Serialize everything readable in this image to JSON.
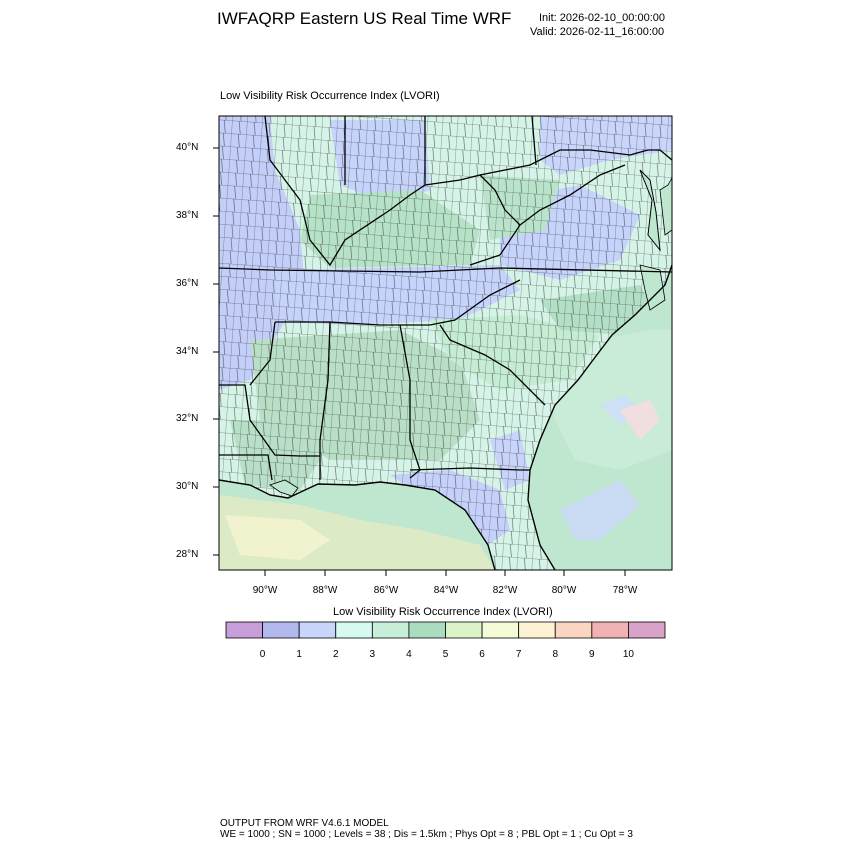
{
  "header": {
    "title": "IWFAQRP Eastern US Real Time WRF",
    "init": "Init: 2026-02-10_00:00:00",
    "valid": "Valid: 2026-02-11_16:00:00"
  },
  "map": {
    "title": "Low Visibility Risk Occurrence Index   (LVORI)",
    "lat_labels": [
      "40°N",
      "38°N",
      "36°N",
      "34°N",
      "32°N",
      "30°N",
      "28°N"
    ],
    "lon_labels": [
      "90°W",
      "88°W",
      "86°W",
      "84°W",
      "82°W",
      "80°W",
      "78°W"
    ]
  },
  "legend": {
    "title": "Low Visibility Risk Occurrence Index  (LVORI)",
    "labels": [
      "0",
      "1",
      "2",
      "3",
      "4",
      "5",
      "6",
      "7",
      "8",
      "9",
      "10"
    ],
    "colors": [
      "#c89ed8",
      "#b3b9ef",
      "#c9d6fb",
      "#d6faf2",
      "#c7efd9",
      "#acdcc0",
      "#dbf3c6",
      "#f4fbd7",
      "#fdf2d3",
      "#fad5c1",
      "#f0b2b3",
      "#d9a2c9"
    ]
  },
  "footer": {
    "line1": "OUTPUT FROM WRF V4.6.1 MODEL",
    "line2": "WE = 1000 ; SN = 1000 ; Levels = 38 ; Dis = 1.5km ; Phys Opt = 8 ; PBL Opt = 1 ; Cu Opt = 3"
  }
}
